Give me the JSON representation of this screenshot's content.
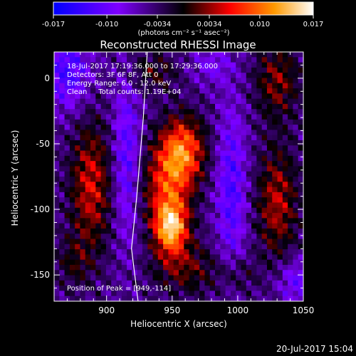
{
  "chart_data": {
    "type": "heatmap",
    "title": "Reconstructed RHESSI Image",
    "xlabel": "Heliocentric X (arcsec)",
    "ylabel": "Heliocentric Y (arcsec)",
    "xlim": [
      860,
      1050
    ],
    "ylim": [
      -170,
      20
    ],
    "x_ticks": [
      900,
      950,
      1000,
      1050
    ],
    "y_ticks": [
      0,
      -50,
      -100,
      -150
    ],
    "colorbar": {
      "range": [
        -0.017,
        0.017
      ],
      "tick_labels": [
        "-0.017",
        "-0.010",
        "-0.0034",
        "0.0034",
        "0.010",
        "0.017"
      ],
      "tick_values": [
        -0.017,
        -0.01,
        -0.0034,
        0.0034,
        0.01,
        0.017
      ],
      "units_label": "(photons cm⁻² s⁻¹ asec⁻²)",
      "colormap": [
        "#0000ff",
        "#7f00ff",
        "#000000",
        "#ff0000",
        "#ff8800",
        "#ffffff"
      ]
    },
    "annotations": [
      "18-Jul-2017 17:19:36.000 to 17:29:36.000",
      "Detectors: 3F 6F 8F, Att 0",
      "Energy Range: 6.0 - 12.0 keV",
      "Clean     Total counts: 1.19E+04"
    ],
    "peak_label": "Position of Peak = [949,-114]",
    "peak": [
      949,
      -114
    ],
    "sources": [
      {
        "x": 949,
        "y": -114,
        "amplitude": 0.017,
        "sx": 9,
        "sy": 14
      },
      {
        "x": 958,
        "y": -55,
        "amplitude": 0.0135,
        "sx": 12,
        "sy": 18
      },
      {
        "x": 946,
        "y": -82,
        "amplitude": 0.01,
        "sx": 13,
        "sy": 22
      },
      {
        "x": 888,
        "y": -82,
        "amplitude": 0.0095,
        "sx": 11,
        "sy": 34
      },
      {
        "x": 1030,
        "y": -95,
        "amplitude": 0.0085,
        "sx": 11,
        "sy": 30
      },
      {
        "x": 1030,
        "y": -2,
        "amplitude": 0.007,
        "sx": 12,
        "sy": 20
      },
      {
        "x": 960,
        "y": -145,
        "amplitude": 0.006,
        "sx": 18,
        "sy": 14
      },
      {
        "x": 935,
        "y": 5,
        "amplitude": 0.005,
        "sx": 14,
        "sy": 10
      },
      {
        "x": 875,
        "y": -140,
        "amplitude": 0.004,
        "sx": 10,
        "sy": 14
      },
      {
        "x": 1000,
        "y": -150,
        "amplitude": 0.0035,
        "sx": 10,
        "sy": 10
      }
    ],
    "negative_lobes": [
      {
        "x": 915,
        "y": -60,
        "amplitude": -0.007,
        "sx": 7,
        "sy": 45
      },
      {
        "x": 995,
        "y": -85,
        "amplitude": -0.0075,
        "sx": 8,
        "sy": 45
      },
      {
        "x": 870,
        "y": 5,
        "amplitude": -0.008,
        "sx": 12,
        "sy": 20
      },
      {
        "x": 1045,
        "y": -155,
        "amplitude": -0.006,
        "sx": 10,
        "sy": 12
      },
      {
        "x": 980,
        "y": 10,
        "amplitude": -0.004,
        "sx": 12,
        "sy": 10
      }
    ],
    "limb": [
      [
        931,
        20
      ],
      [
        928,
        -30
      ],
      [
        923,
        -90
      ],
      [
        919,
        -130
      ],
      [
        924,
        -170
      ]
    ],
    "timestamp": "20-Jul-2017 15:04"
  }
}
